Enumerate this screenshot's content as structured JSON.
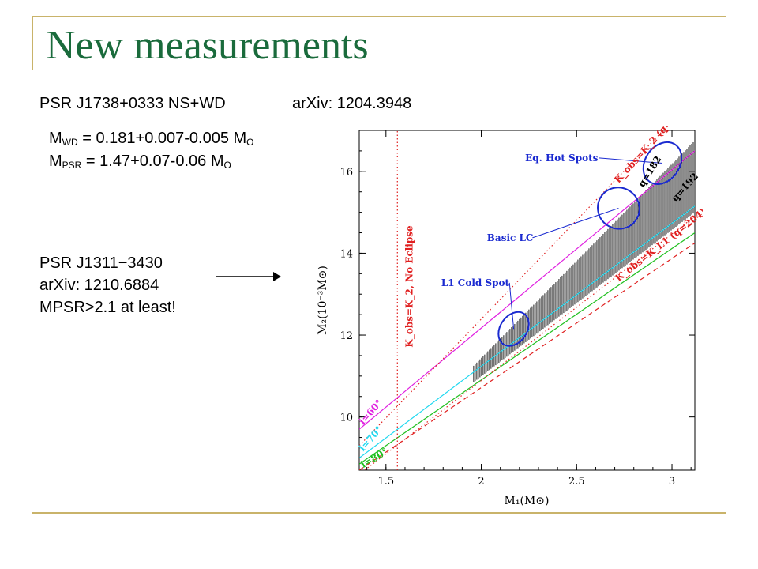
{
  "slide": {
    "title": "New measurements",
    "line1_left": "PSR J1738+0333 NS+WD",
    "line1_right": "arXiv: 1204.3948",
    "mwd": {
      "m": "M",
      "sub": "WD",
      "rest": " = 0.181+0.007-0.005 M",
      "sun_sub": "O"
    },
    "mpsr": {
      "m": "M",
      "sub": "PSR",
      "rest": " = 1.47+0.07-0.06 M",
      "sun_sub": "O"
    },
    "psr2_name": "PSR J1311−3430",
    "psr2_arxiv": "arXiv: 1210.6884",
    "psr2_note": "MPSR>2.1 at least!"
  },
  "chart_data": {
    "type": "line",
    "xlabel": "M₁(M⊙)",
    "ylabel": "M₂(10⁻³M⊙)",
    "xlim": [
      1.36,
      3.12
    ],
    "ylim": [
      8.7,
      17.0
    ],
    "xticks": [
      1.5,
      2,
      2.5,
      3
    ],
    "yticks": [
      10,
      12,
      14,
      16
    ],
    "xtick_labels": [
      "1.5",
      "2",
      "2.5",
      "3"
    ],
    "ytick_labels": [
      "10",
      "12",
      "14",
      "16"
    ],
    "series": [
      {
        "name": "i=60°",
        "color": "#e020e0",
        "style": "solid",
        "x": [
          1.36,
          3.12
        ],
        "y": [
          9.7,
          16.5
        ]
      },
      {
        "name": "i=70°",
        "color": "#20d8f0",
        "style": "solid",
        "x": [
          1.36,
          3.12
        ],
        "y": [
          9.0,
          15.15
        ]
      },
      {
        "name": "i=80°",
        "color": "#20c020",
        "style": "solid",
        "x": [
          1.36,
          3.12
        ],
        "y": [
          8.85,
          14.5
        ]
      },
      {
        "name": "",
        "color": "#e02020",
        "style": "dashed",
        "x": [
          1.36,
          3.12
        ],
        "y": [
          8.7,
          14.25
        ]
      },
      {
        "name": "K_obs=K_2 (q=171)",
        "color": "#e02020",
        "style": "dotted",
        "x": [
          1.36,
          3.12
        ],
        "y": [
          9.3,
          17.8
        ]
      },
      {
        "name": "K_obs=K_L1 (q=204)",
        "color": "#e02020",
        "style": "dotted",
        "x": [
          1.36,
          3.12
        ],
        "y": [
          8.6,
          14.9
        ]
      },
      {
        "name": "K_obs=K_2, No Eclipse",
        "color": "#e02020",
        "style": "dotted",
        "x": [
          1.56,
          1.56
        ],
        "y": [
          8.7,
          17.0
        ]
      }
    ],
    "band": {
      "x": [
        1.96,
        3.12
      ],
      "lower": [
        10.85,
        15.0
      ],
      "upper": [
        11.25,
        16.75
      ]
    },
    "ellipses": [
      {
        "name": "Eq. Hot Spots",
        "cx": 2.95,
        "cy": 16.2,
        "rx": 0.09,
        "ry": 0.55
      },
      {
        "name": "Basic LC",
        "cx": 2.72,
        "cy": 15.1,
        "rx": 0.11,
        "ry": 0.5
      },
      {
        "name": "L1 Cold Spot",
        "cx": 2.17,
        "cy": 12.15,
        "rx": 0.07,
        "ry": 0.45
      }
    ],
    "annotations": [
      {
        "text": "Eq. Hot Spots",
        "x": 2.23,
        "y": 16.25,
        "color": "#1a2ad0",
        "to": [
          2.95,
          16.2
        ]
      },
      {
        "text": "Basic LC",
        "x": 2.03,
        "y": 14.3,
        "color": "#1a2ad0",
        "to": [
          2.72,
          15.1
        ]
      },
      {
        "text": "L1 Cold Spot",
        "x": 1.79,
        "y": 13.2,
        "color": "#1a2ad0",
        "to": [
          2.17,
          12.15
        ]
      },
      {
        "text": "q=182",
        "x": 2.85,
        "y": 15.6,
        "color": "#000000",
        "rot": -58
      },
      {
        "text": "q=192",
        "x": 3.02,
        "y": 15.25,
        "color": "#000000",
        "rot": -48
      },
      {
        "text": "K_obs=K_2 (q=171)",
        "x": 2.72,
        "y": 15.7,
        "color": "#e02020",
        "rot": -48
      },
      {
        "text": "K_obs=K_L1 (q=204)",
        "x": 2.72,
        "y": 13.3,
        "color": "#e02020",
        "rot": -38
      },
      {
        "text": "K_obs=K_2, No Eclipse",
        "x": 1.64,
        "y": 11.7,
        "color": "#e02020",
        "rot": -90
      },
      {
        "text": "i=60°",
        "x": 1.38,
        "y": 9.8,
        "color": "#e020e0",
        "rot": -48
      },
      {
        "text": "i=70°",
        "x": 1.38,
        "y": 9.15,
        "color": "#20d8f0",
        "rot": -48
      },
      {
        "text": "i=80°",
        "x": 1.38,
        "y": 8.75,
        "color": "#20c020",
        "rot": -30
      }
    ]
  }
}
